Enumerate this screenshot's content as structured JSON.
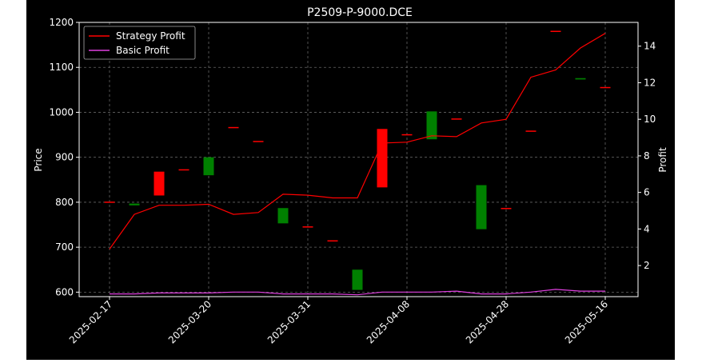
{
  "chart_data": {
    "type": "candlestick-with-line",
    "title": "P2509-P-9000.DCE",
    "ylabel_left": "Price",
    "ylabel_right": "Profit",
    "ylim_left": [
      590,
      1200
    ],
    "ylim_right": [
      0.3,
      15.3
    ],
    "yticks_left": [
      600,
      700,
      800,
      900,
      1000,
      1100,
      1200
    ],
    "yticks_right": [
      2,
      4,
      6,
      8,
      10,
      12,
      14
    ],
    "xtick_labels": [
      "2025-02-17",
      "2025-03-20",
      "2025-03-31",
      "2025-04-08",
      "2025-04-28",
      "2025-05-16"
    ],
    "xtick_index": [
      0,
      4,
      8,
      12,
      16,
      20
    ],
    "grid": true,
    "legend_position": "top-left",
    "colors": {
      "background": "#000000",
      "text": "#ffffff",
      "grid": "#666666",
      "strategy": "#ff0000",
      "basic": "#e040e0",
      "up": "#ff0000",
      "down": "#008000"
    },
    "candles": [
      {
        "open": 800,
        "close": 800
      },
      {
        "open": 797,
        "close": 793
      },
      {
        "open": 815,
        "close": 868
      },
      {
        "open": 872,
        "close": 872
      },
      {
        "open": 900,
        "close": 860
      },
      {
        "open": 966,
        "close": 966
      },
      {
        "open": 933,
        "close": 935
      },
      {
        "open": 787,
        "close": 753
      },
      {
        "open": 745,
        "close": 745
      },
      {
        "open": 714,
        "close": 714
      },
      {
        "open": 650,
        "close": 605
      },
      {
        "open": 833,
        "close": 963
      },
      {
        "open": 950,
        "close": 950
      },
      {
        "open": 1002,
        "close": 940
      },
      {
        "open": 985,
        "close": 985
      },
      {
        "open": 838,
        "close": 740
      },
      {
        "open": 786,
        "close": 786
      },
      {
        "open": 958,
        "close": 958
      },
      {
        "open": 1179,
        "close": 1180
      },
      {
        "open": 1076,
        "close": 1073
      },
      {
        "open": 1055,
        "close": 1055
      }
    ],
    "series": [
      {
        "name": "Strategy Profit",
        "values": [
          2.9,
          4.8,
          5.3,
          5.3,
          5.35,
          4.8,
          4.9,
          5.9,
          5.85,
          5.7,
          5.7,
          8.7,
          8.75,
          9.1,
          9.05,
          9.8,
          10.0,
          12.3,
          12.7,
          13.9,
          14.7
        ]
      },
      {
        "name": "Basic Profit",
        "values": [
          0.45,
          0.45,
          0.5,
          0.5,
          0.5,
          0.55,
          0.55,
          0.45,
          0.45,
          0.45,
          0.4,
          0.55,
          0.55,
          0.55,
          0.6,
          0.45,
          0.45,
          0.55,
          0.7,
          0.6,
          0.6
        ]
      }
    ]
  }
}
